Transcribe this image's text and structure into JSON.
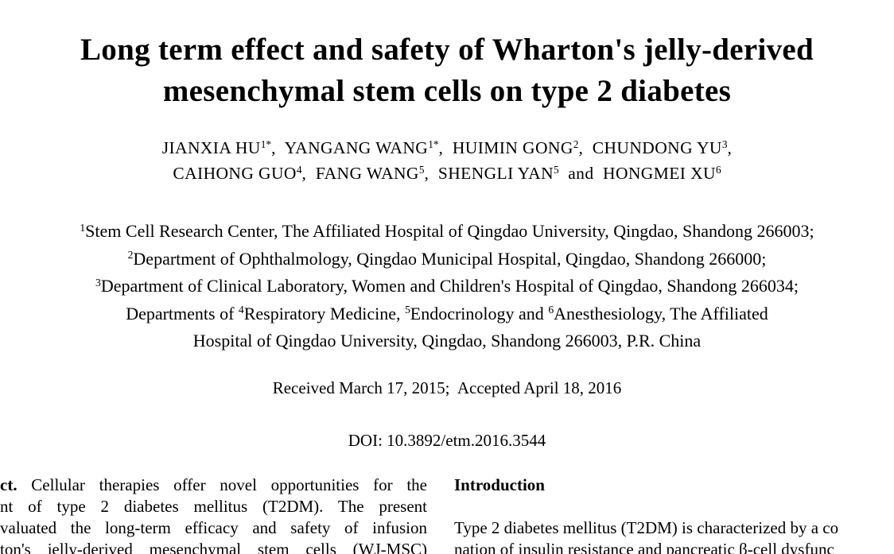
{
  "page": {
    "background": "#ffffff",
    "text_color": "#000000"
  },
  "paper": {
    "title": {
      "line1": "Long term effect and safety of Wharton's jelly-derived",
      "line2": "mesenchymal stem cells on type 2 diabetes"
    },
    "authors": {
      "row1": [
        {
          "name": "JIANXIA HU",
          "sup": "1*",
          "sep": ",  "
        },
        {
          "name": "YANGANG WANG",
          "sup": "1*",
          "sep": ",  "
        },
        {
          "name": "HUIMIN GONG",
          "sup": "2",
          "sep": ",  "
        },
        {
          "name": "CHUNDONG YU",
          "sup": "3",
          "sep": ","
        }
      ],
      "row2": [
        {
          "name": "CAIHONG GUO",
          "sup": "4",
          "sep": ",  "
        },
        {
          "name": "FANG WANG",
          "sup": "5",
          "sep": ",  "
        },
        {
          "name": "SHENGLI YAN",
          "sup": "5",
          "sep": "  and  "
        },
        {
          "name": "HONGMEI XU",
          "sup": "6",
          "sep": ""
        }
      ]
    },
    "affiliations": {
      "line1": {
        "sup": "1",
        "text": "Stem Cell Research Center, The Affiliated Hospital of Qingdao University, Qingdao, Shandong 266003;"
      },
      "line2": {
        "sup": "2",
        "text": "Department of Ophthalmology, Qingdao Municipal Hospital, Qingdao, Shandong 266000;"
      },
      "line3": {
        "sup": "3",
        "text": "Department of Clinical Laboratory, Women and Children's Hospital of Qingdao, Shandong 266034;"
      },
      "line4": {
        "seg1": "Departments of ",
        "sup1": "4",
        "seg2": "Respiratory Medicine, ",
        "sup2": "5",
        "seg3": "Endocrinology and ",
        "sup3": "6",
        "seg4": "Anesthesiology, The Affiliated"
      },
      "line5": "Hospital of Qingdao University, Qingdao, Shandong 266003, P.R. China"
    },
    "dates": "Received March 17, 2015;  Accepted April 18, 2016",
    "doi": "DOI: 10.3892/etm.2016.3544",
    "abstract": {
      "lead_bold": "ct.",
      "line1_rest": " Cellular therapies offer novel opportunities for the",
      "line2": "nt of type 2 diabetes mellitus (T2DM). The present",
      "line3": "valuated the long-term efficacy and safety of infusion",
      "line4": "ton's jelly-derived mesenchymal stem cells (WJ-MSC)"
    },
    "introduction": {
      "heading": "Introduction",
      "line1": "Type 2 diabetes mellitus (T2DM) is characterized by a co",
      "line2": "nation of insulin resistance and pancreatic β-cell dysfunc"
    }
  }
}
